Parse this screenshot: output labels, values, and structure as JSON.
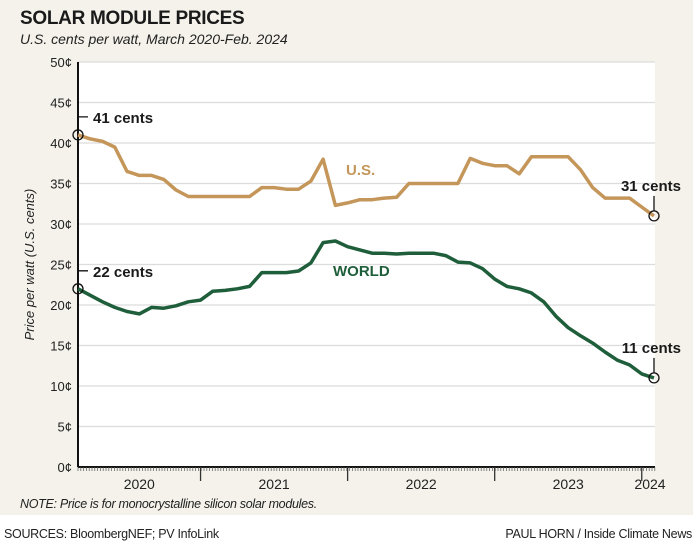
{
  "header": {
    "title": "SOLAR MODULE PRICES",
    "subtitle": "U.S. cents per watt, March 2020-Feb. 2024"
  },
  "footer": {
    "note": "NOTE: Price is for monocrystalline silicon solar modules.",
    "sources": "SOURCES: BloombergNEF; PV InfoLink",
    "credit": "PAUL HORN / Inside Climate News"
  },
  "chart_data": {
    "type": "line",
    "title": "SOLAR MODULE PRICES",
    "subtitle": "U.S. cents per watt, March 2020-Feb. 2024",
    "xlabel": "",
    "ylabel": "Price per watt (U.S. cents)",
    "ylim": [
      0,
      50
    ],
    "yticks": [
      "0¢",
      "5¢",
      "10¢",
      "15¢",
      "20¢",
      "25¢",
      "30¢",
      "35¢",
      "40¢",
      "45¢",
      "50¢"
    ],
    "xticks": [
      "2020",
      "2021",
      "2022",
      "2023",
      "2024"
    ],
    "grid": true,
    "colors": {
      "us": "#c4965a",
      "world": "#1f5e3b"
    },
    "x": [
      "2020-03",
      "2020-04",
      "2020-05",
      "2020-06",
      "2020-07",
      "2020-08",
      "2020-09",
      "2020-10",
      "2020-11",
      "2020-12",
      "2021-01",
      "2021-02",
      "2021-03",
      "2021-04",
      "2021-05",
      "2021-06",
      "2021-07",
      "2021-08",
      "2021-09",
      "2021-10",
      "2021-11",
      "2021-12",
      "2022-01",
      "2022-02",
      "2022-03",
      "2022-04",
      "2022-05",
      "2022-06",
      "2022-07",
      "2022-08",
      "2022-09",
      "2022-10",
      "2022-11",
      "2022-12",
      "2023-01",
      "2023-02",
      "2023-03",
      "2023-04",
      "2023-05",
      "2023-06",
      "2023-07",
      "2023-08",
      "2023-09",
      "2023-10",
      "2023-11",
      "2023-12",
      "2024-01",
      "2024-02"
    ],
    "series": [
      {
        "name": "U.S.",
        "values": [
          41,
          40.5,
          40.2,
          39.5,
          36.5,
          36,
          36,
          35.5,
          34.2,
          33.4,
          33.4,
          33.4,
          33.4,
          33.4,
          33.4,
          34.5,
          34.5,
          34.3,
          34.3,
          35.3,
          38,
          32.3,
          32.6,
          33,
          33,
          33.2,
          33.3,
          35,
          35,
          35,
          35,
          35,
          38.1,
          37.5,
          37.2,
          37.2,
          36.2,
          38.3,
          38.3,
          38.3,
          38.3,
          36.7,
          34.5,
          33.2,
          33.2,
          33.2,
          32.1,
          31
        ]
      },
      {
        "name": "WORLD",
        "values": [
          22,
          21.2,
          20.4,
          19.7,
          19.2,
          18.9,
          19.7,
          19.6,
          19.9,
          20.4,
          20.6,
          21.7,
          21.8,
          22,
          22.3,
          24,
          24,
          24,
          24.2,
          25.2,
          27.7,
          27.9,
          27.2,
          26.8,
          26.4,
          26.4,
          26.3,
          26.4,
          26.4,
          26.4,
          26.1,
          25.3,
          25.2,
          24.5,
          23.2,
          22.3,
          22,
          21.5,
          20.4,
          18.6,
          17.2,
          16.2,
          15.3,
          14.2,
          13.2,
          12.6,
          11.5,
          11
        ]
      }
    ],
    "annotations": [
      {
        "text": "41 cents",
        "series": "U.S.",
        "x": "2020-03",
        "y": 41
      },
      {
        "text": "31 cents",
        "series": "U.S.",
        "x": "2024-02",
        "y": 31
      },
      {
        "text": "22 cents",
        "series": "WORLD",
        "x": "2020-03",
        "y": 22
      },
      {
        "text": "11 cents",
        "series": "WORLD",
        "x": "2024-02",
        "y": 11
      }
    ]
  }
}
